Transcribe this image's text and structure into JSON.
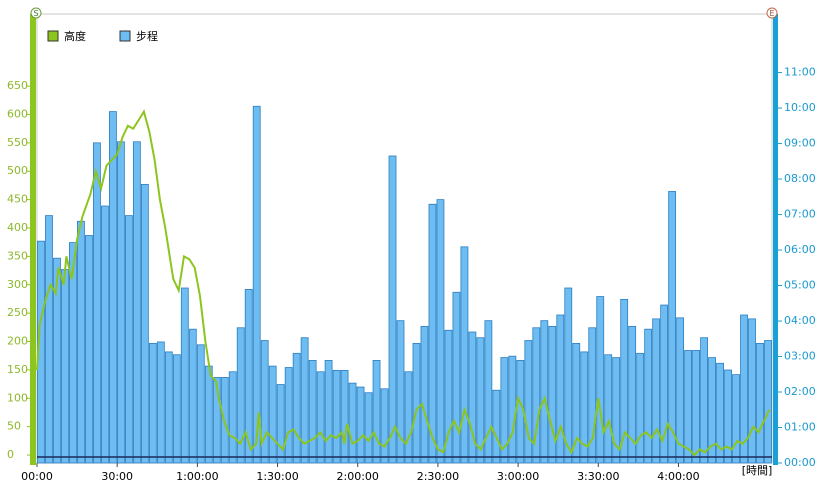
{
  "chart_data": {
    "type": "combo",
    "start_marker": "S",
    "end_marker": "E",
    "x_label": "[時間]",
    "xlim": [
      0,
      275
    ],
    "xticks": [
      {
        "value": 0,
        "label": "00:00"
      },
      {
        "value": 30,
        "label": "30:00"
      },
      {
        "value": 60,
        "label": "1:00:00"
      },
      {
        "value": 90,
        "label": "1:30:00"
      },
      {
        "value": 120,
        "label": "2:00:00"
      },
      {
        "value": 150,
        "label": "2:30:00"
      },
      {
        "value": 180,
        "label": "3:00:00"
      },
      {
        "value": 210,
        "label": "3:30:00"
      },
      {
        "value": 240,
        "label": "4:00:00"
      }
    ],
    "ylim": [
      -14,
      777
    ],
    "yticks": [
      0,
      50,
      100,
      150,
      200,
      250,
      300,
      350,
      400,
      450,
      500,
      550,
      600,
      650
    ],
    "y2lim": [
      0,
      12.65
    ],
    "y2ticks": [
      {
        "value": 0,
        "label": "00:00"
      },
      {
        "value": 1,
        "label": "01:00"
      },
      {
        "value": 2,
        "label": "02:00"
      },
      {
        "value": 3,
        "label": "03:00"
      },
      {
        "value": 4,
        "label": "04:00"
      },
      {
        "value": 5,
        "label": "05:00"
      },
      {
        "value": 6,
        "label": "06:00"
      },
      {
        "value": 7,
        "label": "07:00"
      },
      {
        "value": 8,
        "label": "08:00"
      },
      {
        "value": 9,
        "label": "09:00"
      },
      {
        "value": 10,
        "label": "10:00"
      },
      {
        "value": 11,
        "label": "11:00"
      }
    ],
    "series": [
      {
        "name": "高度",
        "type": "line",
        "color": "#8cc51e",
        "x": [
          0,
          1,
          3,
          5,
          7,
          8,
          10,
          11,
          13,
          15,
          17,
          20,
          22,
          24,
          26,
          28,
          30,
          32,
          34,
          36,
          38,
          40,
          42,
          44,
          46,
          48,
          50,
          51,
          53,
          55,
          57,
          59,
          61,
          63,
          65,
          67,
          68,
          70,
          72,
          74,
          76,
          78,
          80,
          82,
          83,
          84,
          86,
          88,
          90,
          92,
          94,
          96,
          98,
          100,
          102,
          104,
          106,
          108,
          110,
          112,
          114,
          115,
          116,
          118,
          120,
          122,
          124,
          126,
          128,
          130,
          132,
          134,
          136,
          138,
          140,
          142,
          144,
          146,
          148,
          150,
          152,
          154,
          156,
          158,
          160,
          162,
          164,
          166,
          168,
          170,
          172,
          174,
          176,
          178,
          180,
          182,
          184,
          186,
          188,
          190,
          192,
          194,
          196,
          198,
          200,
          202,
          204,
          206,
          208,
          210,
          212,
          214,
          216,
          218,
          220,
          222,
          224,
          226,
          228,
          230,
          232,
          234,
          236,
          238,
          240,
          242,
          244,
          246,
          248,
          250,
          252,
          254,
          256,
          258,
          260,
          262,
          264,
          266,
          268,
          270,
          272,
          274
        ],
        "values": [
          150,
          230,
          270,
          300,
          285,
          330,
          300,
          350,
          310,
          380,
          420,
          460,
          500,
          470,
          510,
          520,
          530,
          560,
          580,
          575,
          590,
          605,
          570,
          520,
          450,
          400,
          340,
          310,
          290,
          350,
          345,
          330,
          280,
          200,
          140,
          130,
          100,
          60,
          35,
          30,
          20,
          40,
          10,
          20,
          75,
          20,
          40,
          30,
          20,
          10,
          40,
          45,
          30,
          20,
          25,
          30,
          40,
          25,
          35,
          30,
          40,
          20,
          55,
          20,
          25,
          35,
          25,
          40,
          20,
          15,
          30,
          50,
          30,
          20,
          40,
          80,
          90,
          60,
          30,
          10,
          5,
          40,
          60,
          40,
          80,
          55,
          20,
          10,
          30,
          50,
          30,
          10,
          20,
          40,
          100,
          80,
          30,
          20,
          80,
          100,
          60,
          25,
          50,
          20,
          5,
          30,
          20,
          15,
          30,
          100,
          40,
          60,
          20,
          10,
          40,
          30,
          20,
          35,
          40,
          30,
          45,
          25,
          55,
          40,
          20,
          15,
          10,
          0,
          10,
          5,
          15,
          20,
          10,
          15,
          10,
          25,
          20,
          30,
          50,
          40,
          60,
          80
        ]
      },
      {
        "name": "步程",
        "type": "bar",
        "axis": "y2",
        "color": "#6ebdf2",
        "values": [
          6.25,
          6.97,
          5.77,
          5.45,
          6.21,
          6.81,
          6.41,
          9.02,
          7.24,
          9.9,
          9.05,
          6.97,
          9.05,
          7.85,
          3.37,
          3.41,
          3.13,
          3.05,
          4.93,
          3.77,
          3.33,
          2.73,
          2.41,
          2.41,
          2.57,
          3.81,
          4.89,
          10.05,
          3.45,
          2.73,
          2.21,
          2.69,
          3.09,
          3.53,
          2.89,
          2.57,
          2.89,
          2.61,
          2.61,
          2.25,
          2.14,
          1.98,
          2.89,
          2.09,
          8.65,
          4.01,
          2.57,
          3.37,
          3.85,
          7.29,
          7.42,
          3.74,
          4.81,
          6.09,
          3.69,
          3.53,
          4.01,
          2.05,
          2.97,
          3.01,
          2.89,
          3.45,
          3.81,
          4.01,
          3.85,
          4.17,
          4.93,
          3.37,
          3.13,
          3.81,
          4.69,
          3.05,
          2.97,
          4.61,
          3.85,
          3.09,
          3.77,
          4.06,
          4.45,
          7.65,
          4.09,
          3.17,
          3.17,
          3.53,
          2.97,
          2.81,
          2.62,
          2.49,
          4.17,
          4.06,
          3.37,
          3.45
        ]
      }
    ]
  }
}
